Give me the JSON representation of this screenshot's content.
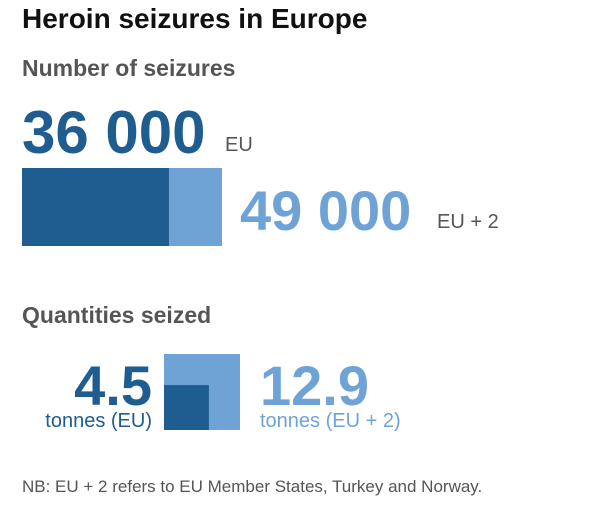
{
  "title": "Heroin seizures in Europe",
  "panels": [
    {
      "subtitle": "Number of seizures",
      "values": [
        36000,
        49000
      ],
      "value_labels": [
        "36 000",
        "49 000"
      ],
      "labels": [
        "EU",
        "EU + 2"
      ],
      "colors": [
        "#1f5c8f",
        "#6fa3d6"
      ]
    },
    {
      "subtitle": "Quantities seized",
      "values": [
        4.5,
        12.9
      ],
      "labels": [
        "tonnes (EU)",
        "tonnes (EU + 2)"
      ],
      "colors": [
        "#1f5c8f",
        "#6fa3d6"
      ]
    }
  ],
  "note": "NB: EU + 2 refers to EU Member States, Turkey and Norway."
}
